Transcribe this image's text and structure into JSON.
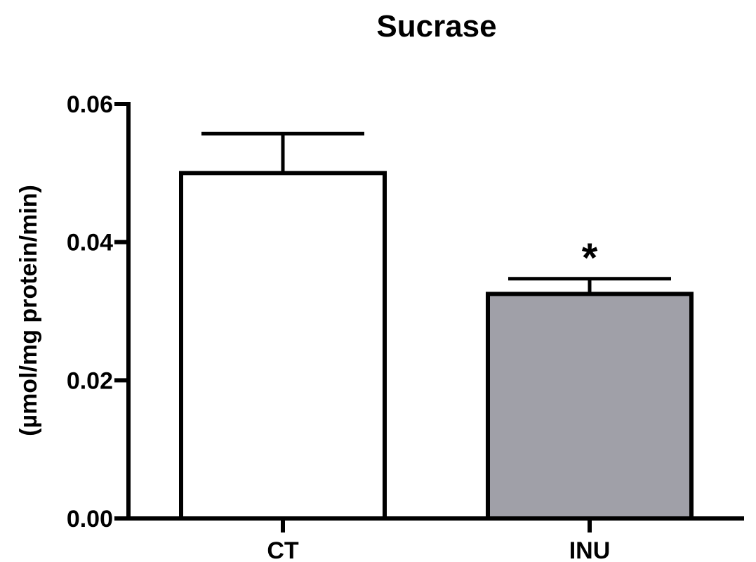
{
  "chart_data": {
    "type": "bar",
    "title": "Sucrase",
    "xlabel": "",
    "ylabel": "(µmol/mg protein/min)",
    "categories": [
      "CT",
      "INU"
    ],
    "values": [
      0.05,
      0.0325
    ],
    "errors": [
      0.0057,
      0.0022
    ],
    "annotations": [
      "",
      "*"
    ],
    "bar_colors": [
      "#ffffff",
      "#a0a0a8"
    ],
    "ylim": [
      0,
      0.06
    ],
    "yticks": [
      "0.00",
      "0.02",
      "0.04",
      "0.06"
    ],
    "ytick_values": [
      0,
      0.02,
      0.04,
      0.06
    ],
    "grid": false,
    "legend": "none"
  }
}
